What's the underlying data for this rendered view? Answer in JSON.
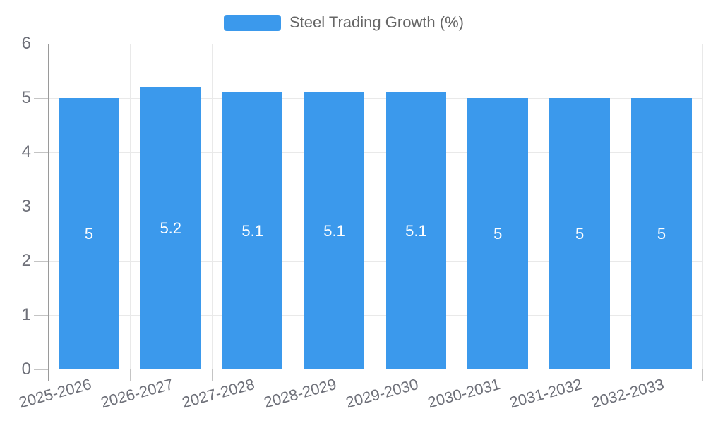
{
  "legend": {
    "label": "Steel Trading Growth (%)"
  },
  "chart_data": {
    "type": "bar",
    "title": "Steel Trading Growth (%)",
    "xlabel": "",
    "ylabel": "",
    "categories": [
      "2025-2026",
      "2026-2027",
      "2027-2028",
      "2028-2029",
      "2029-2030",
      "2030-2031",
      "2031-2032",
      "2032-2033"
    ],
    "values": [
      5,
      5.2,
      5.1,
      5.1,
      5.1,
      5,
      5,
      5
    ],
    "bar_labels": [
      "5",
      "5.2",
      "5.1",
      "5.1",
      "5.1",
      "5",
      "5",
      "5"
    ],
    "yticks": [
      0,
      1,
      2,
      3,
      4,
      5,
      6
    ],
    "ylim": [
      0,
      6
    ],
    "grid": true,
    "legend_position": "top-center",
    "colors": {
      "bar": "#3B99EC",
      "bar_label": "#ffffff",
      "axis_text": "#6e7079",
      "legend_text": "#666666",
      "gridline": "#e9e9e9",
      "axis_line": "#9a9a9a",
      "baseline": "#b5b5b5",
      "tick": "#c4c4c4",
      "background": "#ffffff"
    }
  }
}
